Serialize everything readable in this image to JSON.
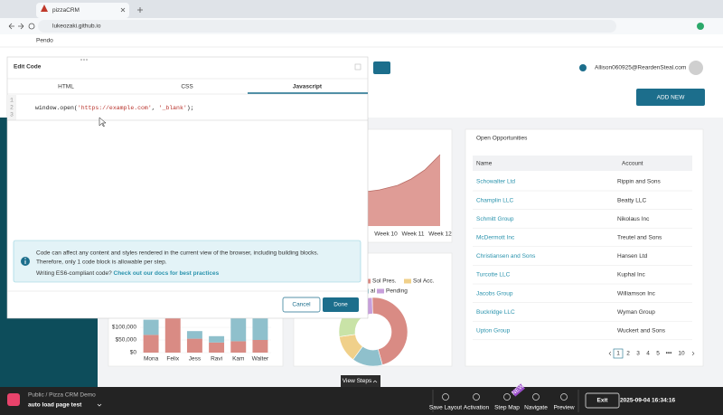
{
  "browser": {
    "tab_title": "pizzaCRM",
    "url": "lukeozaki.github.io",
    "bookmark": "Pendo"
  },
  "header": {
    "user_email": "Allison060925@ReardenSteal.com",
    "add_new": "ADD NEW"
  },
  "line_chart": {
    "x_labels": [
      "Week 10",
      "Week 11",
      "Week 12"
    ]
  },
  "donut_chart": {
    "legend": [
      {
        "label": "Sol Pres.",
        "color": "#d98b84"
      },
      {
        "label": "Sol Acc.",
        "color": "#f0d08a"
      },
      {
        "label": "al",
        "color": "#8fc0cc"
      },
      {
        "label": "Pending",
        "color": "#c79fdb"
      }
    ]
  },
  "bar_chart": {
    "type": "bar",
    "categories": [
      "Mona",
      "Felix",
      "Jess",
      "Ravi",
      "Kam",
      "Walter"
    ],
    "series": [
      {
        "color": "#d98b84",
        "values": [
          70000,
          140000,
          55000,
          40000,
          45000,
          50000
        ]
      },
      {
        "color": "#8fc0cc",
        "values": [
          60000,
          0,
          30000,
          25000,
          95000,
          90000
        ]
      }
    ],
    "ylim": [
      0,
      150000
    ],
    "yticks": [
      {
        "value": 0,
        "label": "$0"
      },
      {
        "value": 50000,
        "label": "$50,000"
      },
      {
        "value": 100000,
        "label": "$100,000"
      }
    ]
  },
  "opportunities": {
    "title": "Open Opportunities",
    "columns": [
      "Name",
      "Account"
    ],
    "rows": [
      [
        "Schowalter Ltd",
        "Rippin and Sons"
      ],
      [
        "Champlin LLC",
        "Beatty LLC"
      ],
      [
        "Schmitt Group",
        "Nikolaus Inc"
      ],
      [
        "McDermott Inc",
        "Treutel and Sons"
      ],
      [
        "Christiansen and Sons",
        "Hansen Ltd"
      ],
      [
        "Turcotte LLC",
        "Kuphal Inc"
      ],
      [
        "Jacobs Group",
        "Williamson Inc"
      ],
      [
        "Buckridge LLC",
        "Wyman Group"
      ],
      [
        "Upton Group",
        "Wuckert and Sons"
      ]
    ],
    "pages": [
      "1",
      "2",
      "3",
      "4",
      "5",
      "•••",
      "10"
    ]
  },
  "modal": {
    "title": "Edit Code",
    "tabs": [
      "HTML",
      "CSS",
      "Javascript"
    ],
    "line_numbers": [
      1,
      2,
      3
    ],
    "code_tokens": [
      "window.open(",
      "'https://example.com'",
      ", ",
      "'_blank'",
      ");"
    ],
    "info_lines": [
      "Code can affect any content and styles rendered in the current view of the browser, including building blocks.",
      "Therefore, only 1 code block is allowable per step."
    ],
    "info_prompt": "Writing ES6-compliant code?",
    "info_link": "Check out our docs for best practices",
    "cancel": "Cancel",
    "done": "Done"
  },
  "pendo_bar": {
    "location": "Public / Pizza CRM Demo",
    "guide_name": "auto load page test",
    "tools": [
      "Save Layout",
      "Activation",
      "Step Map",
      "Navigate",
      "Preview"
    ],
    "badge": "NEW",
    "exit": "Exit",
    "timestamp": "2025-09-04 16:34:16",
    "view_steps": "View Steps"
  }
}
